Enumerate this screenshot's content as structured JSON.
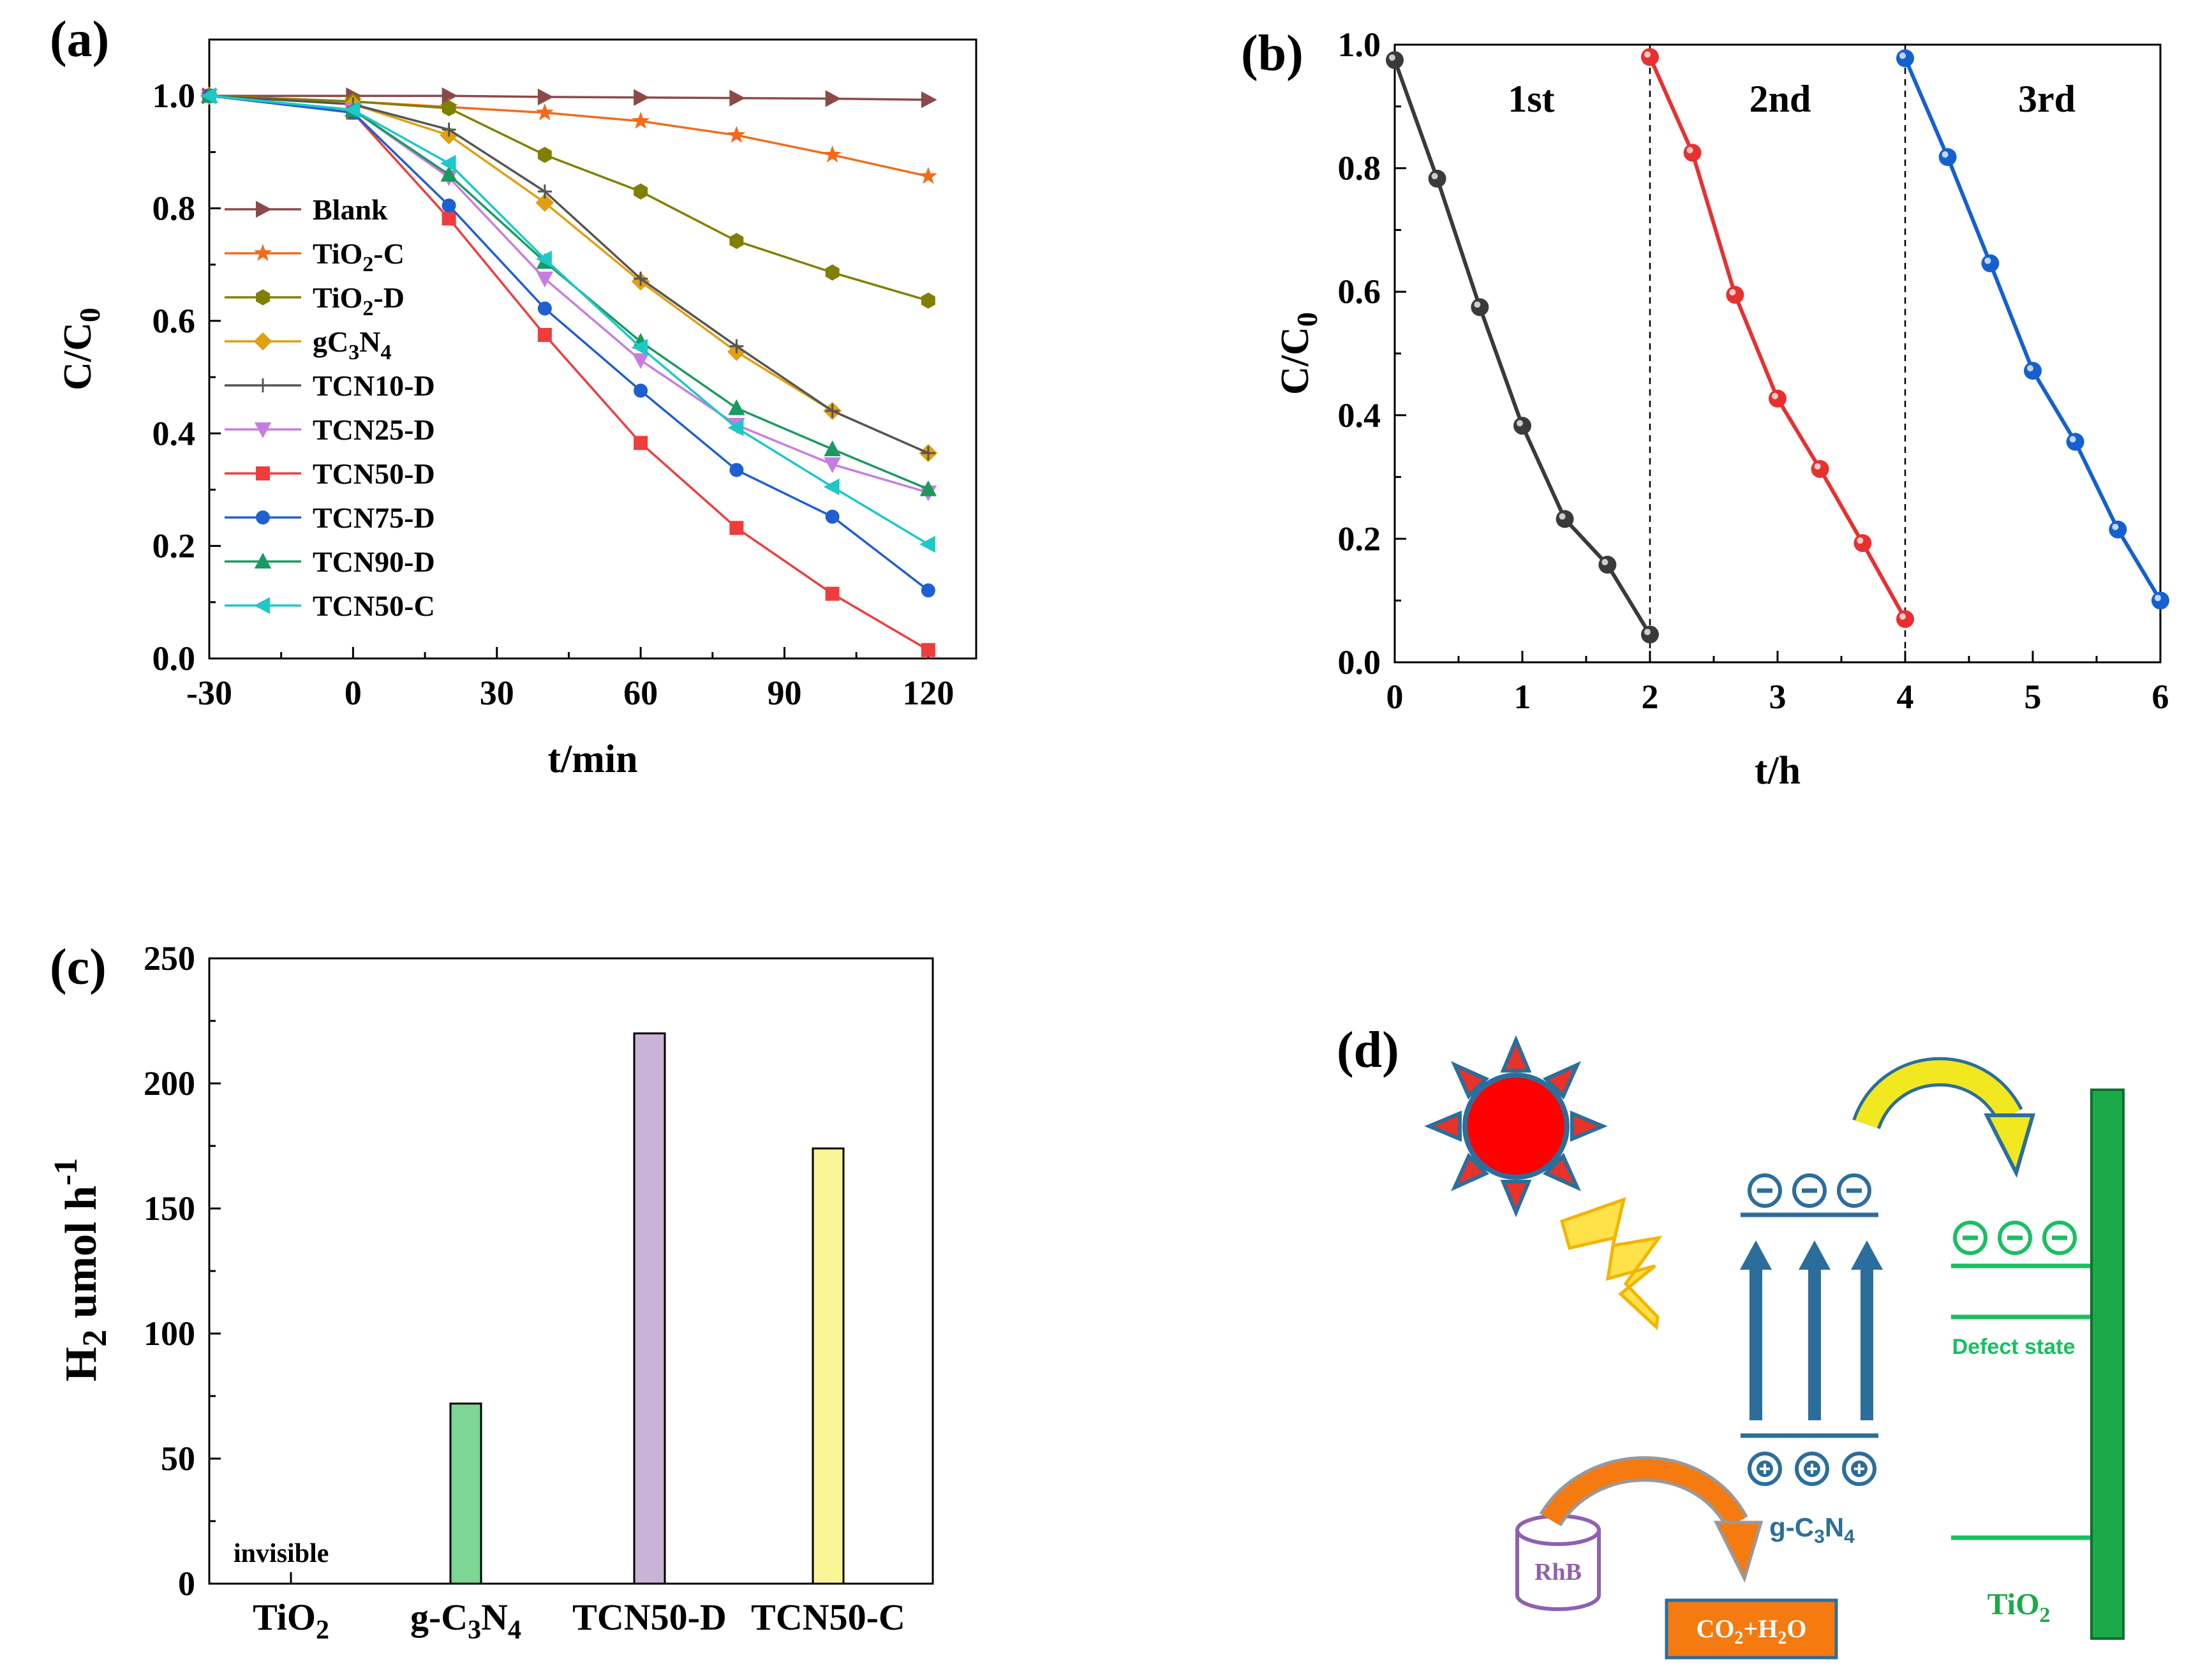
{
  "chart_data": [
    {
      "panel": "(a)",
      "type": "line",
      "xlabel": "t/min",
      "ylabel_main": "C/C",
      "ylabel_sub": "0",
      "xlim": [
        -30,
        130
      ],
      "ylim": [
        0,
        1.1
      ],
      "xticks": [
        "-30",
        "0",
        "30",
        "60",
        "90",
        "120"
      ],
      "yticks": [
        "0.0",
        "0.2",
        "0.4",
        "0.6",
        "0.8",
        "1.0"
      ],
      "x": [
        -30,
        0,
        20,
        40,
        60,
        80,
        100,
        120
      ],
      "series": [
        {
          "name": "Blank",
          "main": "Blank",
          "sub": "",
          "post": "",
          "color": "#8B4A4A",
          "marker": "tri-right",
          "values": [
            1.0,
            1.0,
            1.0,
            0.998,
            0.997,
            0.996,
            0.995,
            0.993
          ]
        },
        {
          "name": "TiO2-C",
          "main": "TiO",
          "sub": "2",
          "post": "-C",
          "color": "#F26B1D",
          "marker": "star",
          "values": [
            1.0,
            0.99,
            0.98,
            0.97,
            0.955,
            0.93,
            0.895,
            0.857
          ]
        },
        {
          "name": "TiO2-D",
          "main": "TiO",
          "sub": "2",
          "post": "-D",
          "color": "#808000",
          "marker": "hex",
          "values": [
            1.0,
            0.99,
            0.978,
            0.895,
            0.83,
            0.742,
            0.686,
            0.636
          ]
        },
        {
          "name": "gC3N4",
          "main": "gC",
          "sub": "3",
          "post": "N",
          "sub2": "4",
          "color": "#E0A010",
          "marker": "diamond",
          "values": [
            1.0,
            0.985,
            0.93,
            0.81,
            0.67,
            0.545,
            0.44,
            0.365
          ]
        },
        {
          "name": "TCN10-D",
          "main": "TCN10-D",
          "sub": "",
          "post": "",
          "color": "#555555",
          "marker": "plus",
          "values": [
            1.0,
            0.985,
            0.94,
            0.83,
            0.675,
            0.555,
            0.44,
            0.365
          ]
        },
        {
          "name": "TCN25-D",
          "main": "TCN25-D",
          "sub": "",
          "post": "",
          "color": "#C77DE0",
          "marker": "tri-down",
          "values": [
            1.0,
            0.975,
            0.855,
            0.675,
            0.53,
            0.415,
            0.345,
            0.295
          ]
        },
        {
          "name": "TCN50-D",
          "main": "TCN50-D",
          "sub": "",
          "post": "",
          "color": "#F03C3C",
          "marker": "square",
          "values": [
            1.0,
            0.97,
            0.782,
            0.575,
            0.383,
            0.232,
            0.115,
            0.015
          ]
        },
        {
          "name": "TCN75-D",
          "main": "TCN75-D",
          "sub": "",
          "post": "",
          "color": "#1F5FD0",
          "marker": "circle",
          "values": [
            1.0,
            0.97,
            0.805,
            0.622,
            0.476,
            0.335,
            0.252,
            0.121
          ]
        },
        {
          "name": "TCN90-D",
          "main": "TCN90-D",
          "sub": "",
          "post": "",
          "color": "#1A9A60",
          "marker": "tri-up",
          "values": [
            1.0,
            0.975,
            0.86,
            0.705,
            0.563,
            0.445,
            0.372,
            0.301
          ]
        },
        {
          "name": "TCN50-C",
          "main": "TCN50-C",
          "sub": "",
          "post": "",
          "color": "#1CC8C8",
          "marker": "tri-left",
          "values": [
            1.0,
            0.975,
            0.88,
            0.71,
            0.553,
            0.41,
            0.305,
            0.203
          ]
        }
      ]
    },
    {
      "panel": "(b)",
      "type": "line",
      "xlabel": "t/h",
      "ylabel_main": "C/C",
      "ylabel_sub": "0",
      "xlim": [
        0,
        6
      ],
      "ylim": [
        0,
        1.0
      ],
      "xticks": [
        "0",
        "1",
        "2",
        "3",
        "4",
        "5",
        "6"
      ],
      "yticks": [
        "0.0",
        "0.2",
        "0.4",
        "0.6",
        "0.8",
        "1.0"
      ],
      "cycle_labels": [
        "1st",
        "2nd",
        "3rd"
      ],
      "series": [
        {
          "name": "1st",
          "color": "#3A3A3A",
          "x": [
            0,
            0.333,
            0.667,
            1.0,
            1.333,
            1.667,
            2.0
          ],
          "values": [
            0.975,
            0.783,
            0.575,
            0.383,
            0.232,
            0.158,
            0.045
          ]
        },
        {
          "name": "2nd",
          "color": "#E83030",
          "x": [
            2.0,
            2.333,
            2.667,
            3.0,
            3.333,
            3.667,
            4.0
          ],
          "values": [
            0.98,
            0.825,
            0.595,
            0.427,
            0.313,
            0.193,
            0.07
          ]
        },
        {
          "name": "3rd",
          "color": "#1560D0",
          "x": [
            4.0,
            4.333,
            4.667,
            5.0,
            5.333,
            5.667,
            6.0
          ],
          "values": [
            0.978,
            0.818,
            0.646,
            0.472,
            0.357,
            0.215,
            0.1
          ]
        }
      ]
    },
    {
      "panel": "(c)",
      "type": "bar",
      "ylabel_main": "H",
      "ylabel_sub": "2",
      "ylabel_post": " umol h",
      "ylabel_sup": "-1",
      "ylim": [
        0,
        250
      ],
      "yticks": [
        "0",
        "50",
        "100",
        "150",
        "200",
        "250"
      ],
      "categories": [
        {
          "main": "TiO",
          "sub": "2",
          "post": "",
          "sub2": "",
          "post2": ""
        },
        {
          "main": "g-C",
          "sub": "3",
          "post": "N",
          "sub2": "4",
          "post2": ""
        },
        {
          "main": "TCN50-D",
          "sub": "",
          "post": "",
          "sub2": "",
          "post2": ""
        },
        {
          "main": "TCN50-C",
          "sub": "",
          "post": "",
          "sub2": "",
          "post2": ""
        }
      ],
      "values": [
        0,
        72,
        220,
        174
      ],
      "colors": [
        "#FFFFFF",
        "#7DD694",
        "#C9B3D6",
        "#FAF596"
      ],
      "annotation": "invisible"
    }
  ],
  "diagram": {
    "panel": "(d)",
    "gcn_label_main": "g-C",
    "gcn_sub1": "3",
    "gcn_mid": "N",
    "gcn_sub2": "4",
    "tio2_main": "TiO",
    "tio2_sub": "2",
    "defect_label": "Defect state",
    "rhb_label": "RhB",
    "product_main": "CO",
    "product_sub": "2",
    "product_mid": "+H",
    "product_sub2": "2",
    "product_end": "O",
    "colors": {
      "sun": "#FF0000",
      "ray": "#E8322A",
      "band": "#2C6E9B",
      "green": "#18C060",
      "tio2_bar": "#1AAA48",
      "orange": "#F57A10",
      "rhb": "#9060B0",
      "lightning": "#FFC91E"
    }
  }
}
